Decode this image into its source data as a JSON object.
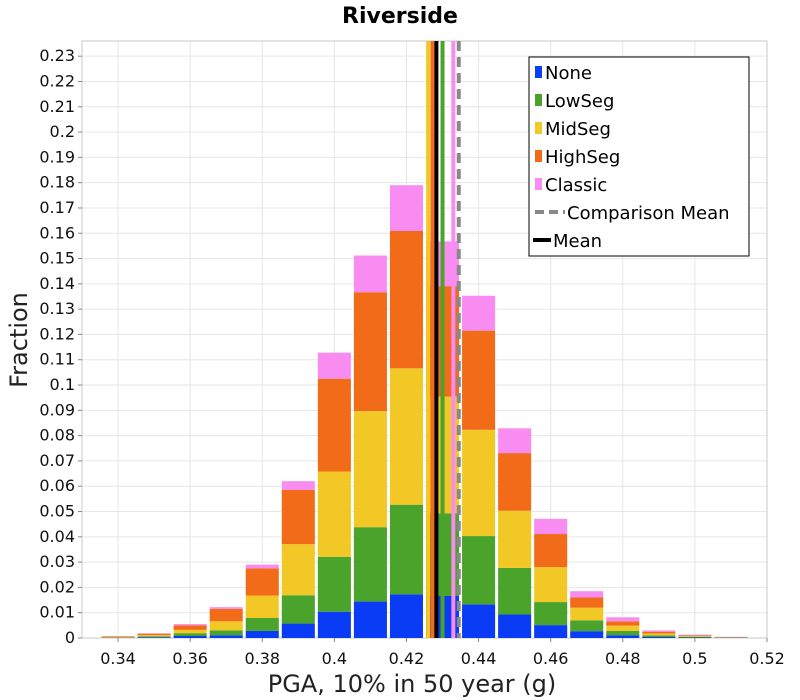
{
  "chart_data": {
    "type": "bar",
    "stacked": true,
    "title": "Riverside",
    "xlabel": "PGA, 10% in 50 year (g)",
    "ylabel": "Fraction",
    "xlim": [
      0.33,
      0.52
    ],
    "ylim": [
      0,
      0.236
    ],
    "x_ticks": [
      "0.34",
      "0.36",
      "0.38",
      "0.4",
      "0.42",
      "0.44",
      "0.46",
      "0.48",
      "0.5",
      "0.52"
    ],
    "x_tick_values": [
      0.34,
      0.36,
      0.38,
      0.4,
      0.42,
      0.44,
      0.46,
      0.48,
      0.5,
      0.52
    ],
    "y_ticks": [
      "0",
      "0.01",
      "0.02",
      "0.03",
      "0.04",
      "0.05",
      "0.06",
      "0.07",
      "0.08",
      "0.09",
      "0.1",
      "0.11",
      "0.12",
      "0.13",
      "0.14",
      "0.15",
      "0.16",
      "0.17",
      "0.18",
      "0.19",
      "0.2",
      "0.21",
      "0.22",
      "0.23"
    ],
    "y_tick_values": [
      0,
      0.01,
      0.02,
      0.03,
      0.04,
      0.05,
      0.06,
      0.07,
      0.08,
      0.09,
      0.1,
      0.11,
      0.12,
      0.13,
      0.14,
      0.15,
      0.16,
      0.17,
      0.18,
      0.19,
      0.2,
      0.21,
      0.22,
      0.23
    ],
    "grid": true,
    "legend_position": "top-right",
    "bin_width": 0.01,
    "x": [
      0.34,
      0.35,
      0.36,
      0.37,
      0.38,
      0.39,
      0.4,
      0.41,
      0.42,
      0.43,
      0.44,
      0.45,
      0.46,
      0.47,
      0.48,
      0.49,
      0.5,
      0.51
    ],
    "series": [
      {
        "name": "None",
        "color": "#0b3cf5",
        "values": [
          0.0001,
          0.0003,
          0.0008,
          0.0011,
          0.0028,
          0.0057,
          0.0104,
          0.0144,
          0.0173,
          0.0166,
          0.0133,
          0.0093,
          0.0051,
          0.0027,
          0.0011,
          0.0004,
          0.0002,
          0.0001
        ]
      },
      {
        "name": "LowSeg",
        "color": "#4aa32a",
        "values": [
          0.0001,
          0.0004,
          0.0011,
          0.0019,
          0.0051,
          0.0112,
          0.0217,
          0.0294,
          0.0354,
          0.0327,
          0.027,
          0.0184,
          0.0091,
          0.0043,
          0.0017,
          0.0006,
          0.0003,
          0.0001
        ]
      },
      {
        "name": "MidSeg",
        "color": "#f2c827",
        "values": [
          0.0002,
          0.0005,
          0.0013,
          0.0036,
          0.0089,
          0.0202,
          0.0337,
          0.0459,
          0.0539,
          0.0461,
          0.042,
          0.0226,
          0.0138,
          0.005,
          0.0021,
          0.0008,
          0.0003,
          0.0001
        ]
      },
      {
        "name": "HighSeg",
        "color": "#f26b18",
        "values": [
          0.0002,
          0.0005,
          0.0018,
          0.0049,
          0.0107,
          0.0215,
          0.0367,
          0.047,
          0.0543,
          0.0437,
          0.0392,
          0.0228,
          0.0131,
          0.004,
          0.0017,
          0.0007,
          0.0003,
          0.0001
        ]
      },
      {
        "name": "Classic",
        "color": "#f98cf0",
        "values": [
          0.0001,
          0.0002,
          0.0005,
          0.0007,
          0.0015,
          0.0034,
          0.0103,
          0.0145,
          0.0181,
          0.0177,
          0.0138,
          0.0098,
          0.006,
          0.0025,
          0.0016,
          0.0005,
          0.0002,
          0.0001
        ]
      }
    ],
    "vertical_lines": [
      {
        "x": 0.426,
        "color": "#f2c827",
        "style": "solid",
        "series": "MidSeg"
      },
      {
        "x": 0.4272,
        "color": "#f26b18",
        "style": "solid",
        "series": "HighSeg"
      },
      {
        "x": 0.43,
        "color": "#4aa32a",
        "style": "solid",
        "series": "LowSeg"
      },
      {
        "x": 0.433,
        "color": "#f98cf0",
        "style": "solid",
        "series": "Classic"
      },
      {
        "x": 0.4283,
        "color": "#000000",
        "style": "solid",
        "series": "Mean"
      },
      {
        "x": 0.4345,
        "color": "#888888",
        "style": "dashed",
        "series": "Comparison Mean"
      }
    ],
    "legend": [
      {
        "label": "None",
        "color": "#0b3cf5",
        "kind": "box"
      },
      {
        "label": "LowSeg",
        "color": "#4aa32a",
        "kind": "box"
      },
      {
        "label": "MidSeg",
        "color": "#f2c827",
        "kind": "box"
      },
      {
        "label": "HighSeg",
        "color": "#f26b18",
        "kind": "box"
      },
      {
        "label": "Classic",
        "color": "#f98cf0",
        "kind": "box"
      },
      {
        "label": "Comparison Mean",
        "color": "#888888",
        "kind": "dashed-line"
      },
      {
        "label": "Mean",
        "color": "#000000",
        "kind": "line"
      }
    ]
  }
}
